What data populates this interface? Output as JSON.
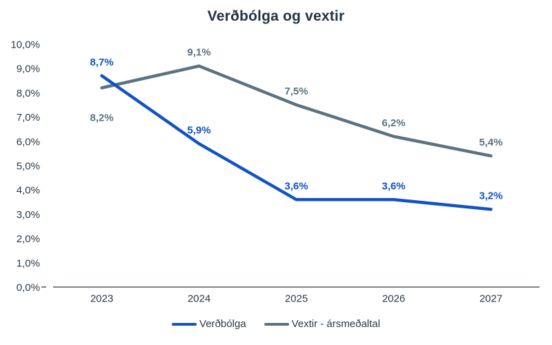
{
  "title": "Verðbólga og vextir",
  "chart_data": {
    "type": "line",
    "title": "Verðbólga og vextir",
    "categories": [
      "2023",
      "2024",
      "2025",
      "2026",
      "2027"
    ],
    "series": [
      {
        "name": "Verðbólga",
        "color": "#1253c4",
        "values": [
          8.7,
          5.9,
          3.6,
          3.6,
          3.2
        ],
        "data_labels": [
          "8,7%",
          "5,9%",
          "3,6%",
          "3,6%",
          "3,2%"
        ],
        "label_positions": [
          "above",
          "above",
          "above",
          "above",
          "above"
        ]
      },
      {
        "name": "Vextir - ársmeðaltal",
        "color": "#5b7282",
        "values": [
          8.2,
          9.1,
          7.5,
          6.2,
          5.4
        ],
        "data_labels": [
          "8,2%",
          "9,1%",
          "7,5%",
          "6,2%",
          "5,4%"
        ],
        "label_positions": [
          "below",
          "above",
          "above",
          "above",
          "above"
        ]
      }
    ],
    "ylim": [
      0,
      10
    ],
    "ytick_step": 1,
    "ytick_labels": [
      "0,0%",
      "1,0%",
      "2,0%",
      "3,0%",
      "4,0%",
      "5,0%",
      "6,0%",
      "7,0%",
      "8,0%",
      "9,0%",
      "10,0%"
    ],
    "xlabel": "",
    "ylabel": "",
    "grid": false,
    "legend_position": "bottom"
  },
  "colors": {
    "series_blue": "#1253c4",
    "series_gray": "#5b7282",
    "axis_text": "#2b3945",
    "title_text": "#243442",
    "axis_line": "#2b3945",
    "background": "#ffffff"
  }
}
